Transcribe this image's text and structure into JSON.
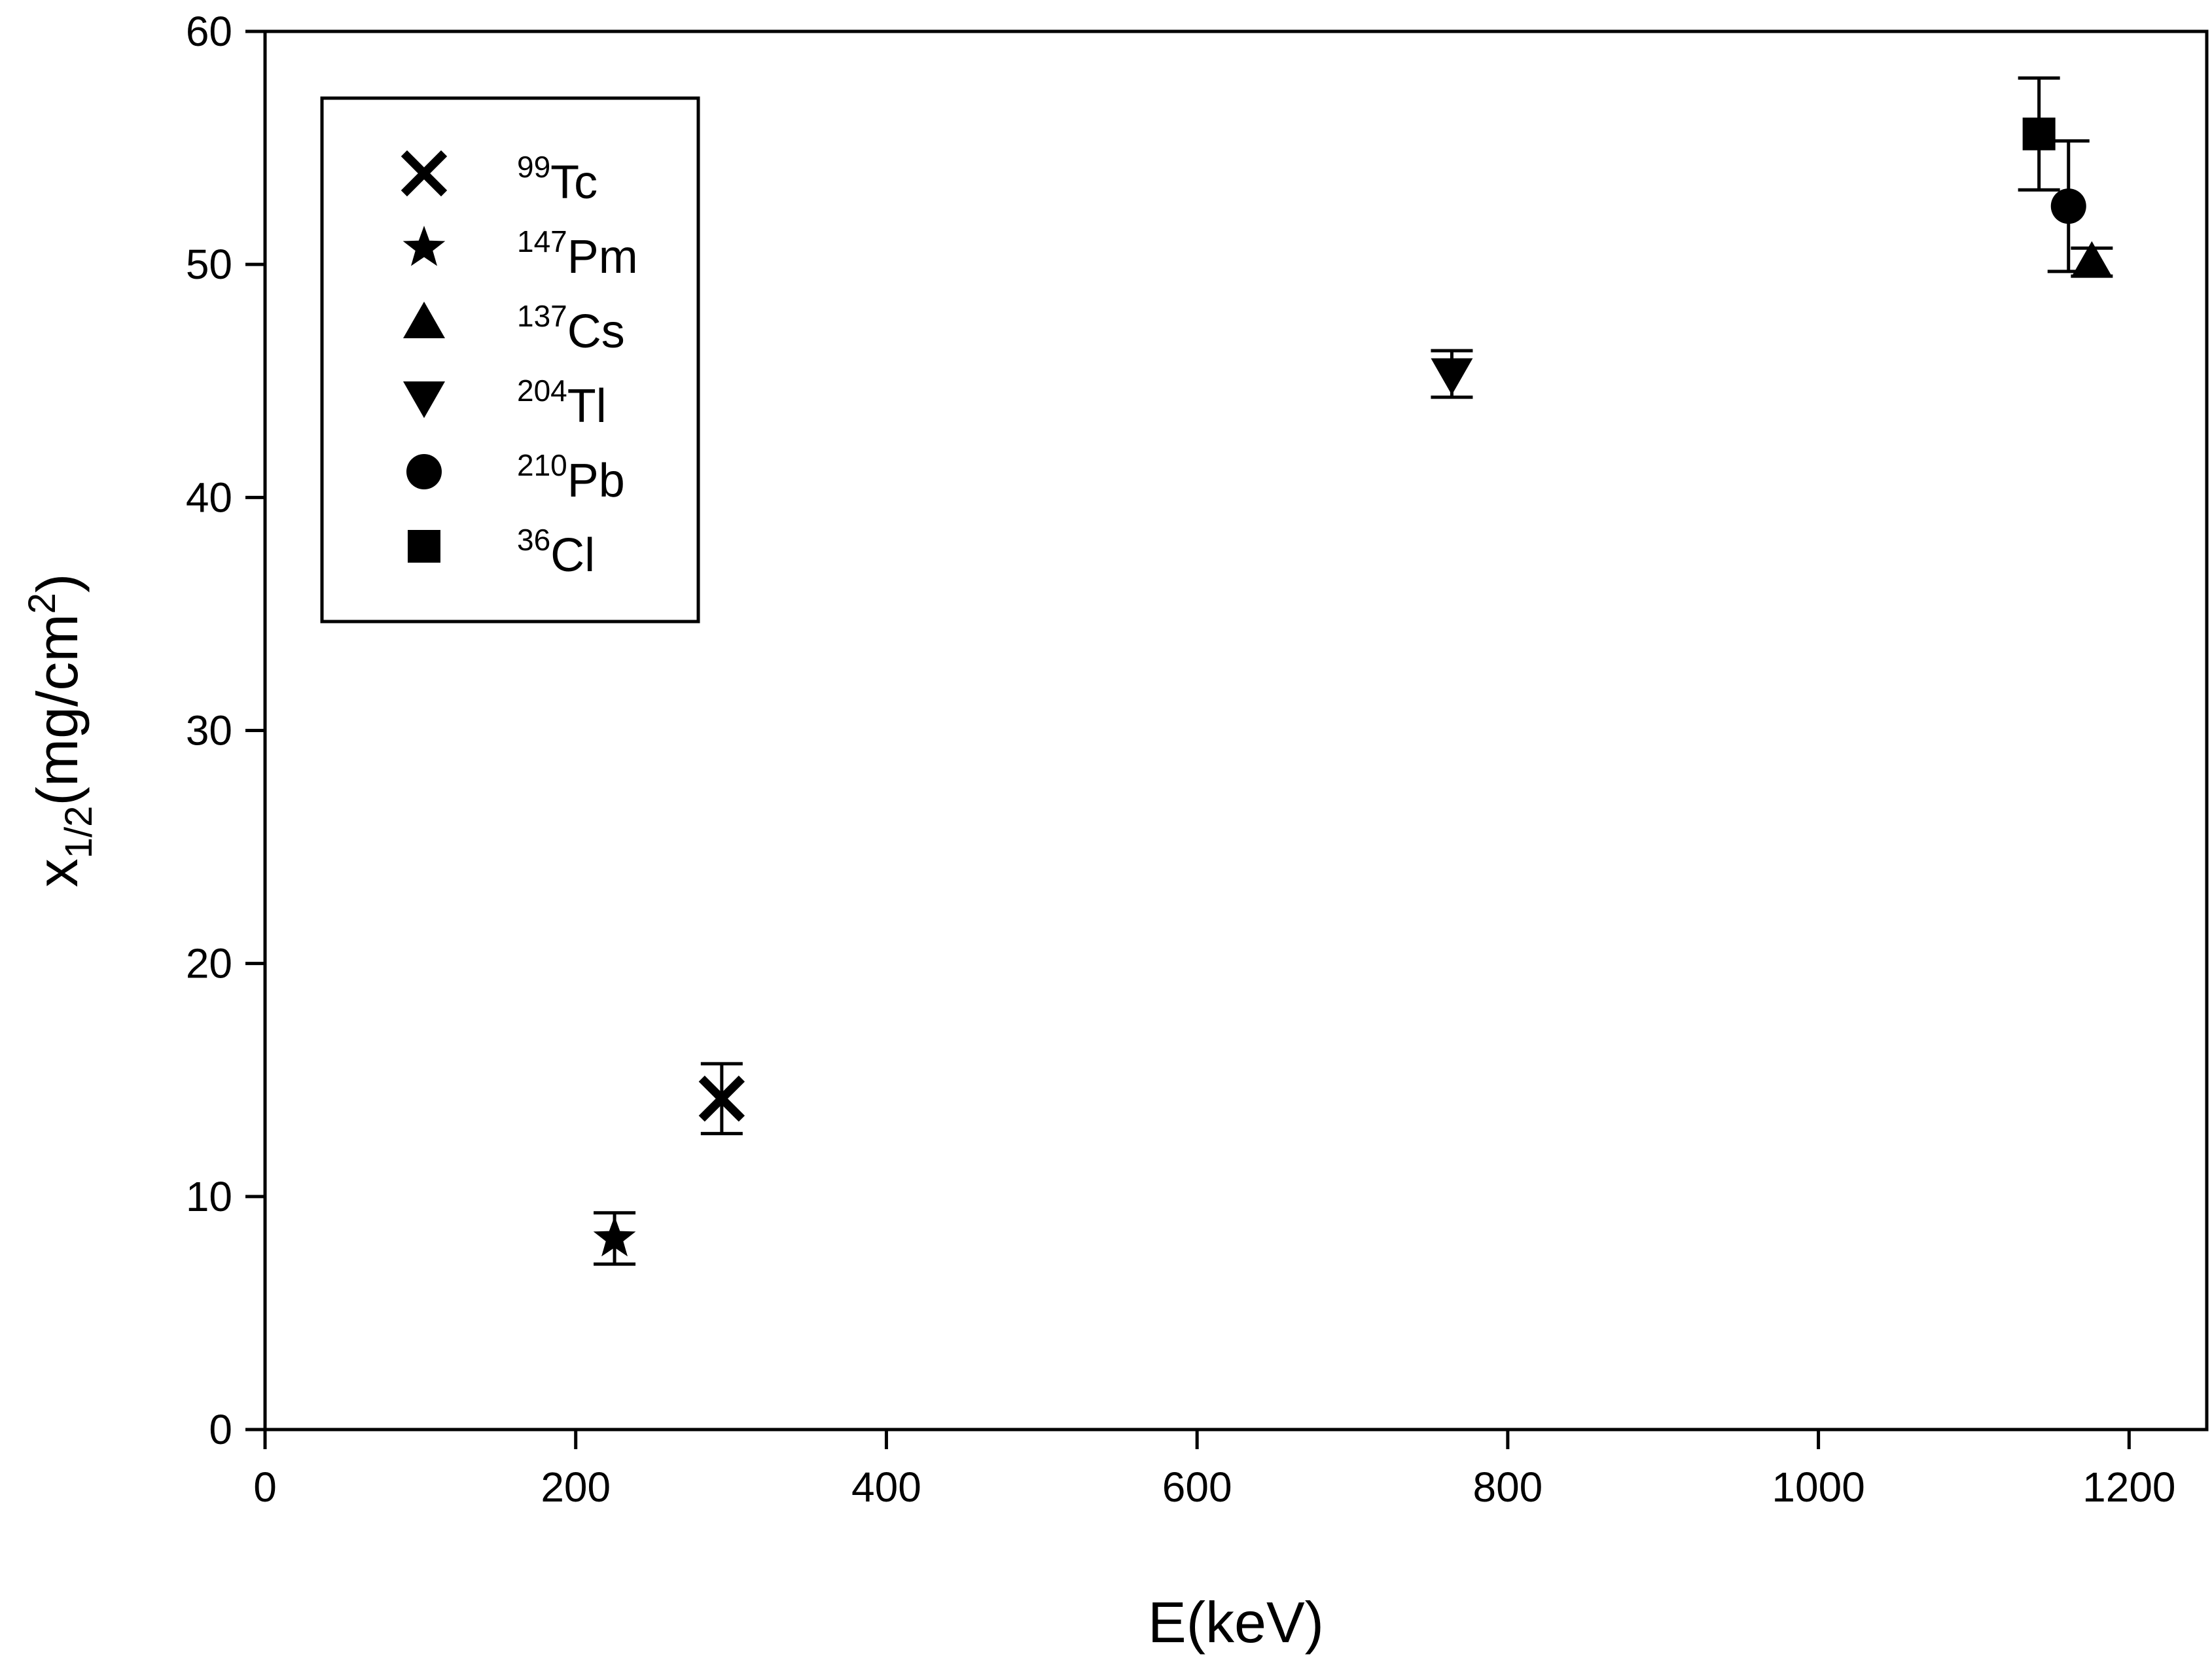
{
  "chart_data": {
    "type": "scatter",
    "xlabel": "E(keV)",
    "ylabel": {
      "base": "x",
      "subscript": "1/2",
      "unit_prefix": "(mg/cm",
      "unit_sup": "2",
      "unit_suffix": ")"
    },
    "xlim": [
      0,
      1250
    ],
    "ylim": [
      0,
      60
    ],
    "x_ticks": [
      "0",
      "200",
      "400",
      "600",
      "800",
      "1000",
      "1200"
    ],
    "y_ticks": [
      "0",
      "10",
      "20",
      "30",
      "40",
      "50",
      "60"
    ],
    "grid": false,
    "legend_position": "top-left",
    "series": [
      {
        "name": "Tc",
        "mass": "99",
        "marker": "x-cross",
        "x": 294,
        "y": 14.2,
        "err": 1.5
      },
      {
        "name": "Pm",
        "mass": "147",
        "marker": "star",
        "x": 225,
        "y": 8.2,
        "err": 1.1
      },
      {
        "name": "Cs",
        "mass": "137",
        "marker": "triangle-up",
        "x": 1176,
        "y": 50.1,
        "err": 0.6
      },
      {
        "name": "Tl",
        "mass": "204",
        "marker": "triangle-down",
        "x": 764,
        "y": 45.3,
        "err": 1.0
      },
      {
        "name": "Pb",
        "mass": "210",
        "marker": "circle",
        "x": 1161,
        "y": 52.5,
        "err": 2.8
      },
      {
        "name": "Cl",
        "mass": "36",
        "marker": "square",
        "x": 1142,
        "y": 55.6,
        "err": 2.4
      }
    ]
  }
}
